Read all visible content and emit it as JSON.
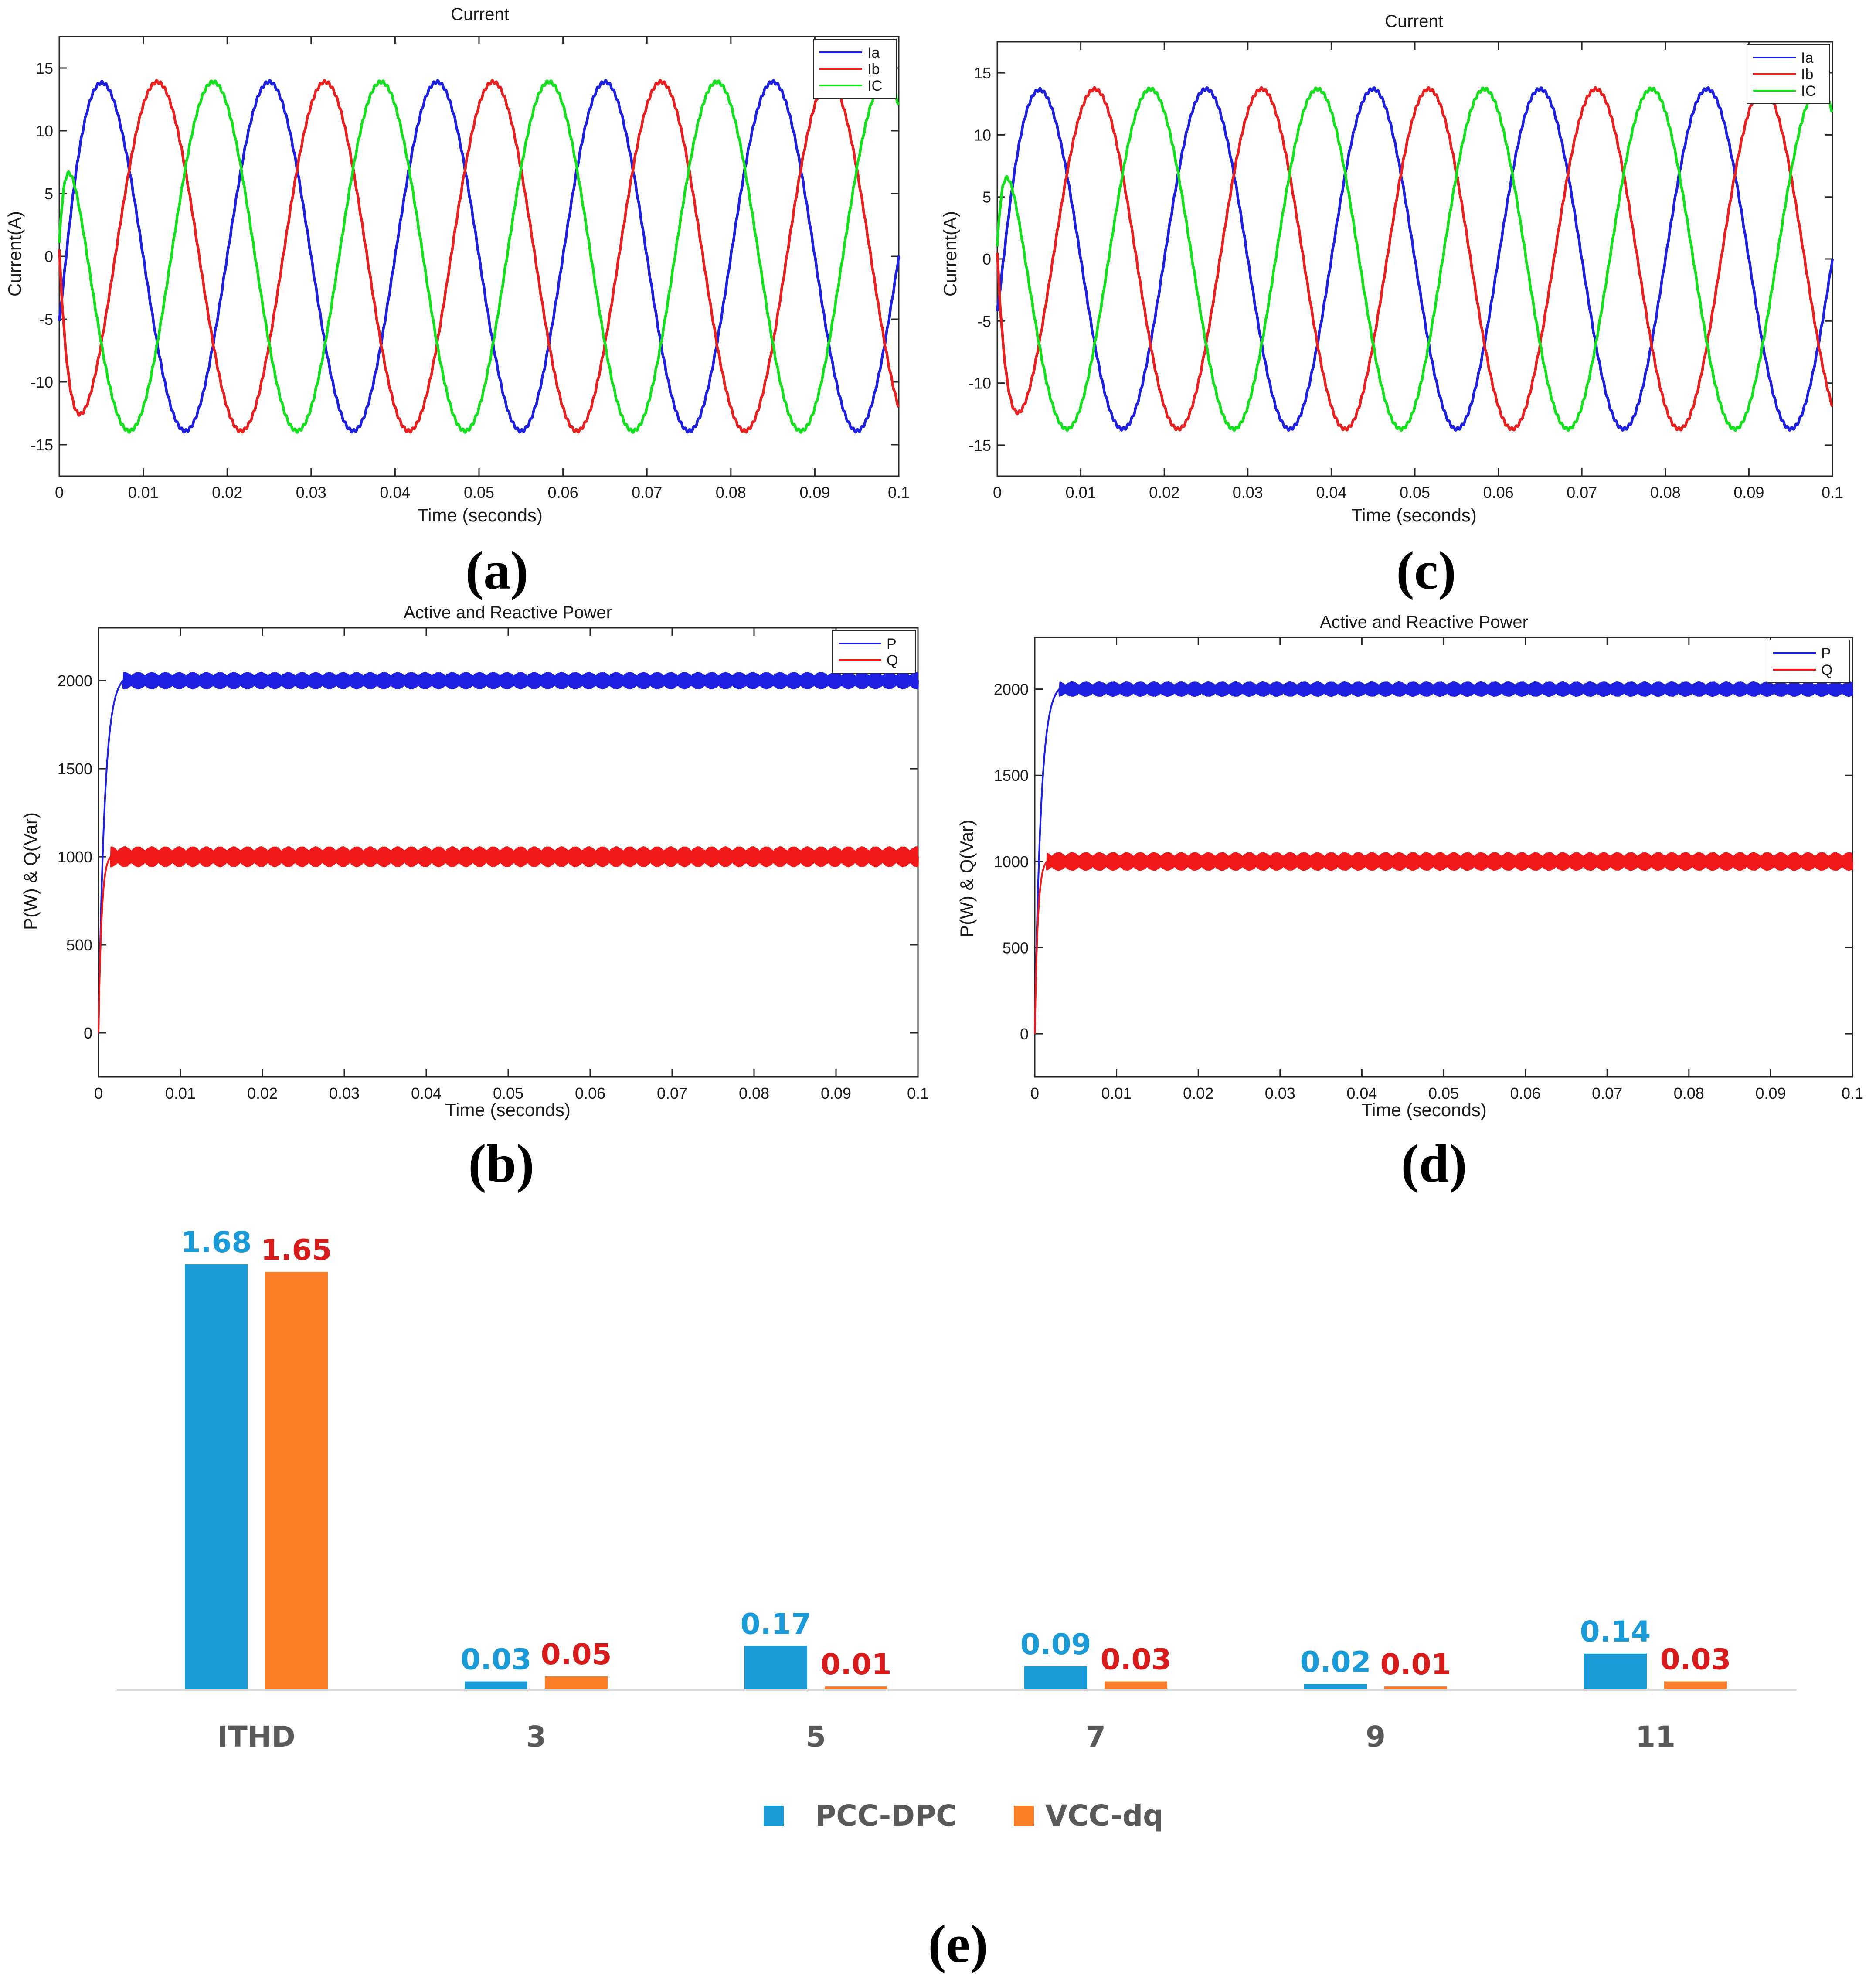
{
  "colors": {
    "ia": "#1f1fe0",
    "ib": "#e82020",
    "ic": "#14e01e",
    "p": "#1f1fe0",
    "q": "#f01818",
    "pcc": "#1a9ad6",
    "vcc": "#fb7d27",
    "pcc_label": "#1a9ad6",
    "vcc_label": "#d81b1b"
  },
  "chart_data": [
    {
      "id": "a",
      "panel_label": "(a)",
      "type": "line",
      "title": "Current",
      "xlabel": "Time (seconds)",
      "ylabel": "Current(A)",
      "xlim": [
        0,
        0.1
      ],
      "ylim": [
        -17.5,
        17.5
      ],
      "xticks": [
        0,
        0.01,
        0.02,
        0.03,
        0.04,
        0.05,
        0.06,
        0.07,
        0.08,
        0.09,
        0.1
      ],
      "xtick_labels": [
        "0",
        "0.01",
        "0.02",
        "0.03",
        "0.04",
        "0.05",
        "0.06",
        "0.07",
        "0.08",
        "0.09",
        "0.1"
      ],
      "yticks": [
        -15,
        -10,
        -5,
        0,
        5,
        10,
        15
      ],
      "ytick_labels": [
        "-15",
        "-10",
        "-5",
        "0",
        "5",
        "10",
        "15"
      ],
      "legend_position": "top-right",
      "series": [
        {
          "name": "Ia",
          "kind": "sine",
          "amplitude": 13.9,
          "frequency_hz": 50,
          "phase_deg": 0,
          "start": [
            0,
            -5.2
          ],
          "color_key": "ia"
        },
        {
          "name": "Ib",
          "kind": "sine",
          "amplitude": 13.9,
          "frequency_hz": 50,
          "phase_deg": -120,
          "start": [
            0,
            0.5
          ],
          "color_key": "ib"
        },
        {
          "name": "IC",
          "kind": "sine",
          "amplitude": 13.9,
          "frequency_hz": 50,
          "phase_deg": 120,
          "start": [
            0,
            1.0
          ],
          "color_key": "ic"
        }
      ]
    },
    {
      "id": "c",
      "panel_label": "(c)",
      "type": "line",
      "title": "Current",
      "xlabel": "Time (seconds)",
      "ylabel": "Current(A)",
      "xlim": [
        0,
        0.1
      ],
      "ylim": [
        -17.5,
        17.5
      ],
      "xticks": [
        0,
        0.01,
        0.02,
        0.03,
        0.04,
        0.05,
        0.06,
        0.07,
        0.08,
        0.09,
        0.1
      ],
      "xtick_labels": [
        "0",
        "0.01",
        "0.02",
        "0.03",
        "0.04",
        "0.05",
        "0.06",
        "0.07",
        "0.08",
        "0.09",
        "0.1"
      ],
      "yticks": [
        -15,
        -10,
        -5,
        0,
        5,
        10,
        15
      ],
      "ytick_labels": [
        "-15",
        "-10",
        "-5",
        "0",
        "5",
        "10",
        "15"
      ],
      "legend_position": "top-right",
      "series": [
        {
          "name": "Ia",
          "kind": "sine",
          "amplitude": 13.7,
          "frequency_hz": 50,
          "phase_deg": 0,
          "start": [
            0,
            -4.2
          ],
          "color_key": "ia"
        },
        {
          "name": "Ib",
          "kind": "sine",
          "amplitude": 13.7,
          "frequency_hz": 50,
          "phase_deg": -120,
          "start": [
            0,
            0.5
          ],
          "color_key": "ib"
        },
        {
          "name": "IC",
          "kind": "sine",
          "amplitude": 13.7,
          "frequency_hz": 50,
          "phase_deg": 120,
          "start": [
            0,
            1.0
          ],
          "color_key": "ic"
        }
      ]
    },
    {
      "id": "b",
      "panel_label": "(b)",
      "type": "line",
      "title": "Active and Reactive Power",
      "xlabel": "Time (seconds)",
      "ylabel": "P(W) & Q(Var)",
      "xlim": [
        0,
        0.1
      ],
      "ylim": [
        -250,
        2300
      ],
      "xticks": [
        0,
        0.01,
        0.02,
        0.03,
        0.04,
        0.05,
        0.06,
        0.07,
        0.08,
        0.09,
        0.1
      ],
      "xtick_labels": [
        "0",
        "0.01",
        "0.02",
        "0.03",
        "0.04",
        "0.05",
        "0.06",
        "0.07",
        "0.08",
        "0.09",
        "0.1"
      ],
      "yticks": [
        0,
        500,
        1000,
        1500,
        2000
      ],
      "ytick_labels": [
        "0",
        "500",
        "1000",
        "1500",
        "2000"
      ],
      "legend_position": "top-right",
      "series": [
        {
          "name": "P",
          "kind": "step",
          "target": 2000,
          "rise_time": 0.003,
          "ripple": 45,
          "color_key": "p"
        },
        {
          "name": "Q",
          "kind": "step",
          "target": 1000,
          "rise_time": 0.0015,
          "ripple": 55,
          "color_key": "q"
        }
      ]
    },
    {
      "id": "d",
      "panel_label": "(d)",
      "type": "line",
      "title": "Active and Reactive Power",
      "xlabel": "Time (seconds)",
      "ylabel": "P(W) & Q(Var)",
      "xlim": [
        0,
        0.1
      ],
      "ylim": [
        -250,
        2300
      ],
      "xticks": [
        0,
        0.01,
        0.02,
        0.03,
        0.04,
        0.05,
        0.06,
        0.07,
        0.08,
        0.09,
        0.1
      ],
      "xtick_labels": [
        "0",
        "0.01",
        "0.02",
        "0.03",
        "0.04",
        "0.05",
        "0.06",
        "0.07",
        "0.08",
        "0.09",
        "0.1"
      ],
      "yticks": [
        0,
        500,
        1000,
        1500,
        2000
      ],
      "ytick_labels": [
        "0",
        "500",
        "1000",
        "1500",
        "2000"
      ],
      "legend_position": "top-right",
      "series": [
        {
          "name": "P",
          "kind": "step",
          "target": 2000,
          "rise_time": 0.003,
          "ripple": 40,
          "color_key": "p"
        },
        {
          "name": "Q",
          "kind": "step",
          "target": 1000,
          "rise_time": 0.0015,
          "ripple": 50,
          "color_key": "q"
        }
      ]
    },
    {
      "id": "e",
      "panel_label": "(e)",
      "type": "bar",
      "categories": [
        "ITHD",
        "3",
        "5",
        "7",
        "9",
        "11"
      ],
      "series": [
        {
          "name": "PCC-DPC",
          "values": [
            1.68,
            0.03,
            0.17,
            0.09,
            0.02,
            0.14
          ],
          "labels": [
            "1.68",
            "0.03",
            "0.17",
            "0.09",
            "0.02",
            "0.14"
          ],
          "color_key": "pcc",
          "label_color_key": "pcc_label"
        },
        {
          "name": "VCC-dq",
          "values": [
            1.65,
            0.05,
            0.01,
            0.03,
            0.01,
            0.03
          ],
          "labels": [
            "1.65",
            "0.05",
            "0.01",
            "0.03",
            "0.01",
            "0.03"
          ],
          "color_key": "vcc",
          "label_color_key": "vcc_label"
        }
      ],
      "ylim": [
        0,
        1.68
      ],
      "legend_position": "bottom"
    }
  ]
}
